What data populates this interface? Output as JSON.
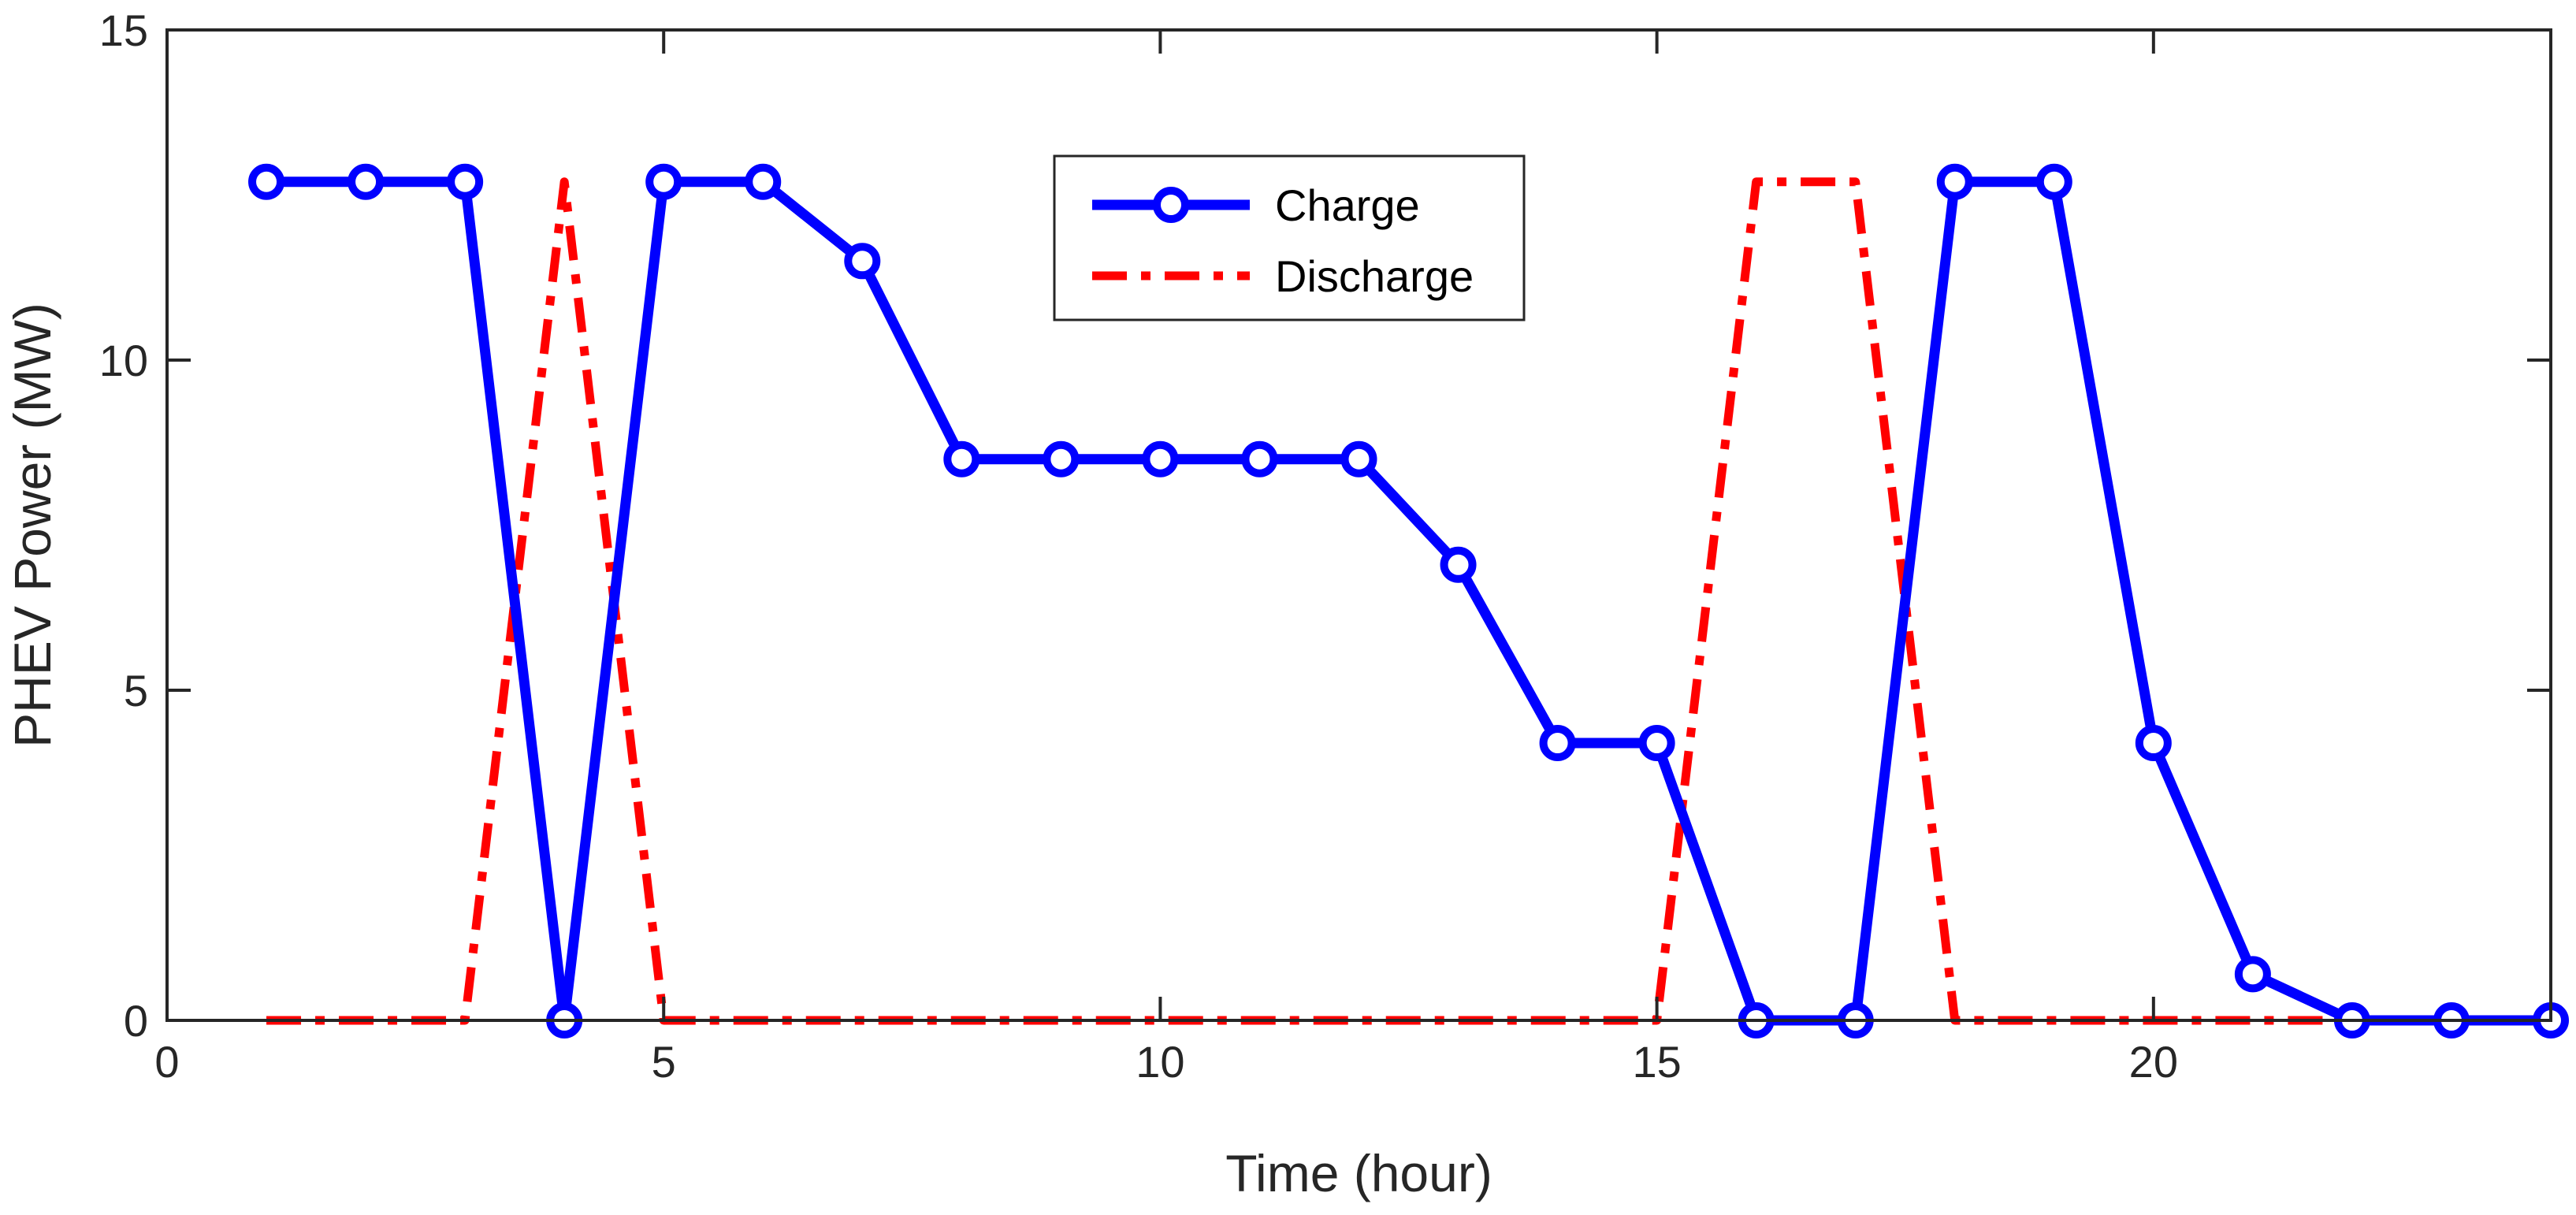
{
  "chart_data": {
    "type": "line",
    "xlabel": "Time (hour)",
    "ylabel": "PHEV Power (MW)",
    "xlim": [
      0,
      24
    ],
    "ylim": [
      0,
      15
    ],
    "xticks": [
      0,
      5,
      10,
      15,
      20
    ],
    "yticks": [
      0,
      5,
      10,
      15
    ],
    "grid": false,
    "legend_position": "top-center",
    "x": [
      1,
      2,
      3,
      4,
      5,
      6,
      7,
      8,
      9,
      10,
      11,
      12,
      13,
      14,
      15,
      16,
      17,
      18,
      19,
      20,
      21,
      22,
      23,
      24
    ],
    "series": [
      {
        "name": "Charge",
        "color": "#0000ff",
        "line_style": "solid",
        "marker": "circle",
        "values": [
          12.7,
          12.7,
          12.7,
          0,
          12.7,
          12.7,
          11.5,
          8.5,
          8.5,
          8.5,
          8.5,
          8.5,
          6.9,
          4.2,
          4.2,
          0,
          0,
          12.7,
          12.7,
          4.2,
          0.7,
          0,
          0,
          0
        ]
      },
      {
        "name": "Discharge",
        "color": "#ff0000",
        "line_style": "dash-dot",
        "marker": "none",
        "values": [
          0,
          0,
          0,
          12.7,
          0,
          0,
          0,
          0,
          0,
          0,
          0,
          0,
          0,
          0,
          0,
          12.7,
          12.7,
          0,
          0,
          0,
          0,
          0,
          0,
          0
        ]
      }
    ]
  }
}
